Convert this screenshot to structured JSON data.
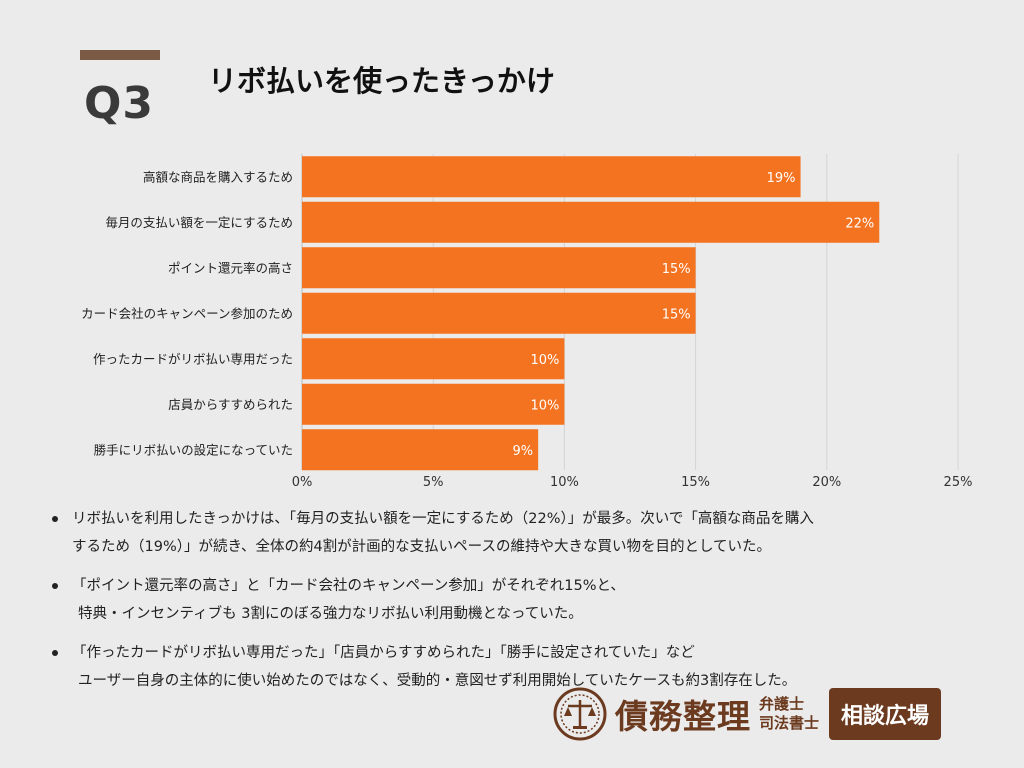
{
  "header": {
    "q_label": "Q3",
    "title": "リボ払いを使ったきっかけ"
  },
  "colors": {
    "bar": "#f47320",
    "accent": "#7a5a45",
    "brand": "#6b3a1f"
  },
  "chart_data": {
    "type": "bar",
    "orientation": "horizontal",
    "categories": [
      "高額な商品を購入するため",
      "毎月の支払い額を一定にするため",
      "ポイント還元率の高さ",
      "カード会社のキャンペーン参加のため",
      "作ったカードがリボ払い専用だった",
      "店員からすすめられた",
      "勝手にリボ払いの設定になっていた"
    ],
    "values": [
      19,
      22,
      15,
      15,
      10,
      10,
      9
    ],
    "data_labels": [
      "19%",
      "22%",
      "15%",
      "15%",
      "10%",
      "10%",
      "9%"
    ],
    "x_ticks": [
      "0%",
      "5%",
      "10%",
      "15%",
      "20%",
      "25%"
    ],
    "xlim": [
      0,
      25
    ],
    "grid": true
  },
  "bullets": [
    {
      "lines": [
        "リボ払いを利用したきっかけは、「毎月の支払い額を一定にするため（22%）」が最多。次いで「高額な商品を購入",
        "するため（19%）」が続き、全体の約4割が計画的な支払いペースの維持や大きな買い物を目的としていた。"
      ]
    },
    {
      "lines": [
        "「ポイント還元率の高さ」と「カード会社のキャンペーン参加」がそれぞれ15%と、",
        "特典・インセンティブも 3割にのぼる強力なリボ払い利用動機となっていた。"
      ]
    },
    {
      "lines": [
        "「作ったカードがリボ払い専用だった」「店員からすすめられた」「勝手に設定されていた」など",
        "ユーザー自身の主体的に使い始めたのではなく、受動的・意図せず利用開始していたケースも約3割存在した。"
      ]
    }
  ],
  "logo": {
    "main": "債務整理",
    "sub_top": "弁護士",
    "sub_bottom": "司法書士",
    "badge": "相談広場",
    "icon": "scales-of-justice-icon"
  }
}
